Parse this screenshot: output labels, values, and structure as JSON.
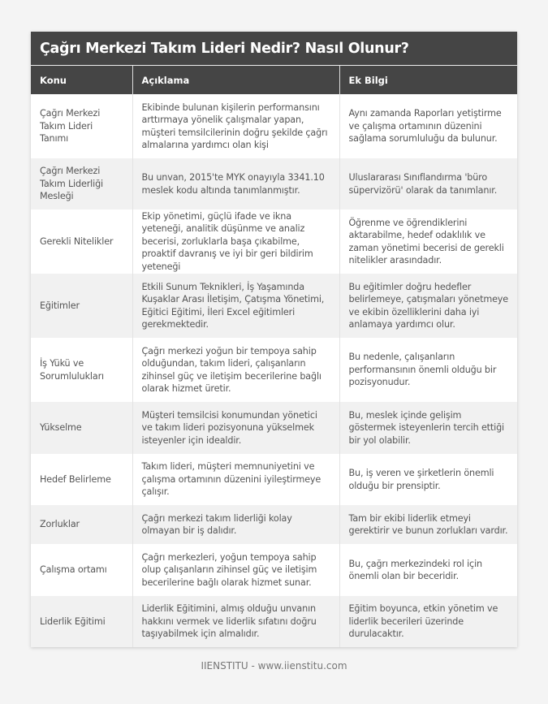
{
  "title": "Çağrı Merkezi Takım Lideri Nedir? Nasıl Olunur?",
  "columns": [
    "Konu",
    "Açıklama",
    "Ek Bilgi"
  ],
  "rows": [
    {
      "konu": "Çağrı Merkezi Takım Lideri Tanımı",
      "aciklama": "Ekibinde bulunan kişilerin performansını arttırmaya yönelik çalışmalar yapan, müşteri temsilcilerinin doğru şekilde çağrı almalarına yardımcı olan kişi",
      "ek": "Aynı zamanda Raporları yetiştirme ve çalışma ortamının düzenini sağlama sorumluluğu da bulunur."
    },
    {
      "konu": "Çağrı Merkezi Takım Liderliği Mesleği",
      "aciklama": "Bu unvan, 2015'te MYK onayıyla 3341.10 meslek kodu altında tanımlanmıştır.",
      "ek": "Uluslararası Sınıflandırma 'büro süpervizörü' olarak da tanımlanır."
    },
    {
      "konu": "Gerekli Nitelikler",
      "aciklama": "Ekip yönetimi, güçlü ifade ve ikna yeteneği, analitik düşünme ve analiz becerisi, zorluklarla başa çıkabilme, proaktif davranış ve iyi bir geri bildirim yeteneği",
      "ek": "Öğrenme ve öğrendiklerini aktarabilme, hedef odaklılık ve zaman yönetimi becerisi de gerekli nitelikler arasındadır."
    },
    {
      "konu": "Eğitimler",
      "aciklama": "Etkili Sunum Teknikleri, İş Yaşamında Kuşaklar Arası İletişim, Çatışma Yönetimi, Eğitici Eğitimi, İleri Excel eğitimleri gerekmektedir.",
      "ek": "Bu eğitimler doğru hedefler belirlemeye, çatışmaları yönetmeye ve ekibin özelliklerini daha iyi anlamaya yardımcı olur."
    },
    {
      "konu": "İş Yükü ve Sorumlulukları",
      "aciklama": "Çağrı merkezi yoğun bir tempoya sahip olduğundan, takım lideri, çalışanların zihinsel güç ve iletişim becerilerine bağlı olarak hizmet üretir.",
      "ek": "Bu nedenle, çalışanların performansının önemli olduğu bir pozisyonudur."
    },
    {
      "konu": "Yükselme",
      "aciklama": "Müşteri temsilcisi konumundan yönetici ve takım lideri pozisyonuna yükselmek isteyenler için idealdir.",
      "ek": "Bu, meslek içinde gelişim göstermek isteyenlerin tercih ettiği bir yol olabilir."
    },
    {
      "konu": "Hedef Belirleme",
      "aciklama": "Takım lideri, müşteri memnuniyetini ve çalışma ortamının düzenini iyileştirmeye çalışır.",
      "ek": "Bu, iş veren ve şirketlerin önemli olduğu bir prensiptir."
    },
    {
      "konu": "Zorluklar",
      "aciklama": "Çağrı merkezi takım liderliği kolay olmayan bir iş dalıdır.",
      "ek": "Tam bir ekibi liderlik etmeyi gerektirir ve bunun zorlukları vardır."
    },
    {
      "konu": "Çalışma ortamı",
      "aciklama": "Çağrı merkezleri, yoğun tempoya sahip olup çalışanların zihinsel güç ve iletişim becerilerine bağlı olarak hizmet sunar.",
      "ek": "Bu, çağrı merkezindeki rol için önemli olan bir beceridir."
    },
    {
      "konu": "Liderlik Eğitimi",
      "aciklama": "Liderlik Eğitimini, almış olduğu unvanın hakkını vermek ve liderlik sıfatını doğru taşıyabilmek için almalıdır.",
      "ek": "Eğitim boyunca, etkin yönetim ve liderlik becerileri üzerinde durulacaktır."
    }
  ],
  "footer": "IIENSTITU - www.iienstitu.com"
}
